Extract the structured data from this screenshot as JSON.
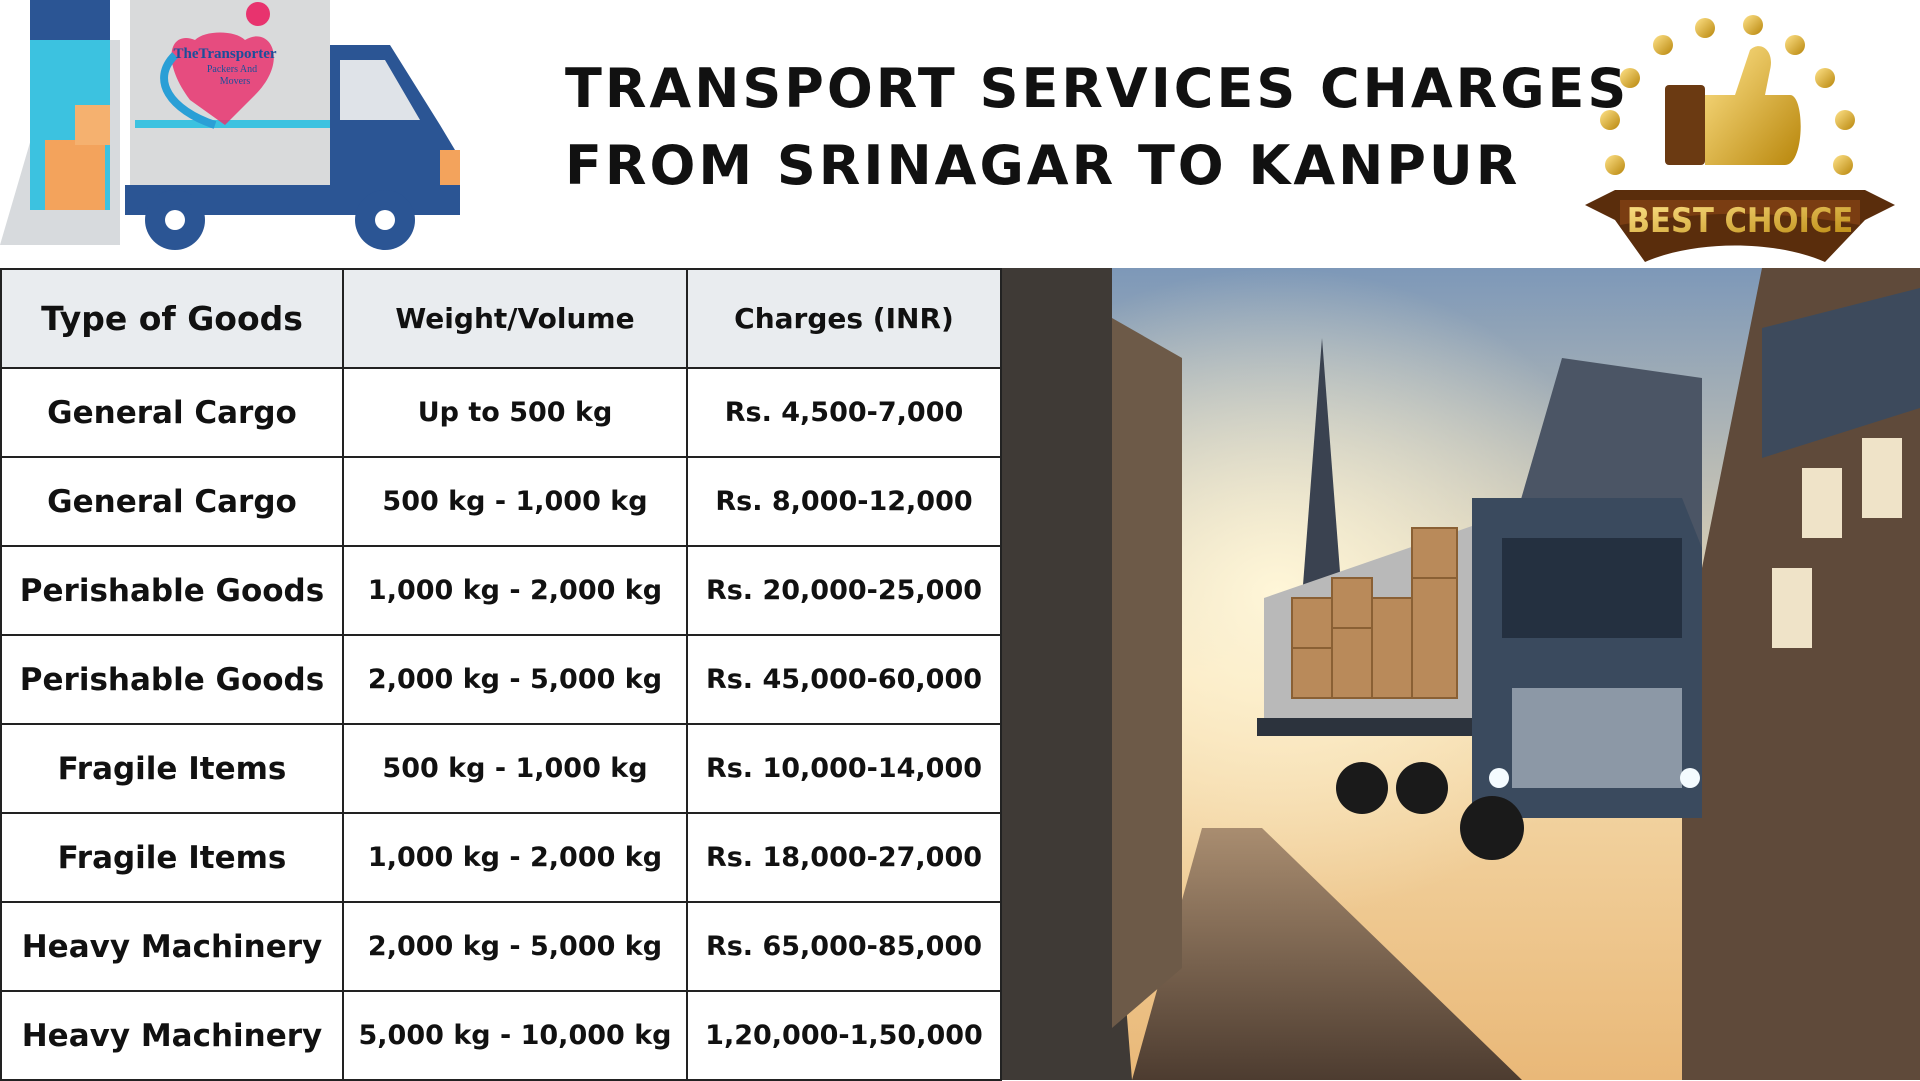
{
  "header": {
    "title_lines": [
      "TRANSPORT SERVICES CHARGES",
      "FROM SRINAGAR TO KANPUR"
    ]
  },
  "logo": {
    "lines": [
      "TheTransporter",
      "Packers And",
      "Movers"
    ]
  },
  "badge": {
    "label": "BEST CHOICE"
  },
  "table": {
    "columns": [
      "Type of Goods",
      "Weight/Volume",
      "Charges (INR)"
    ],
    "rows": [
      [
        "General Cargo",
        "Up to 500 kg",
        "Rs. 4,500-7,000"
      ],
      [
        "General Cargo",
        "500 kg - 1,000 kg",
        "Rs. 8,000-12,000"
      ],
      [
        "Perishable Goods",
        "1,000 kg - 2,000 kg",
        "Rs. 20,000-25,000"
      ],
      [
        "Perishable Goods",
        "2,000 kg - 5,000 kg",
        "Rs. 45,000-60,000"
      ],
      [
        "Fragile Items",
        "500 kg - 1,000 kg",
        "Rs. 10,000-14,000"
      ],
      [
        "Fragile Items",
        "1,000 kg - 2,000 kg",
        "Rs. 18,000-27,000"
      ],
      [
        "Heavy Machinery",
        "2,000 kg - 5,000 kg",
        "Rs. 65,000-85,000"
      ],
      [
        "Heavy Machinery",
        "5,000 kg - 10,000 kg",
        "1,20,000-1,50,000"
      ]
    ]
  }
}
